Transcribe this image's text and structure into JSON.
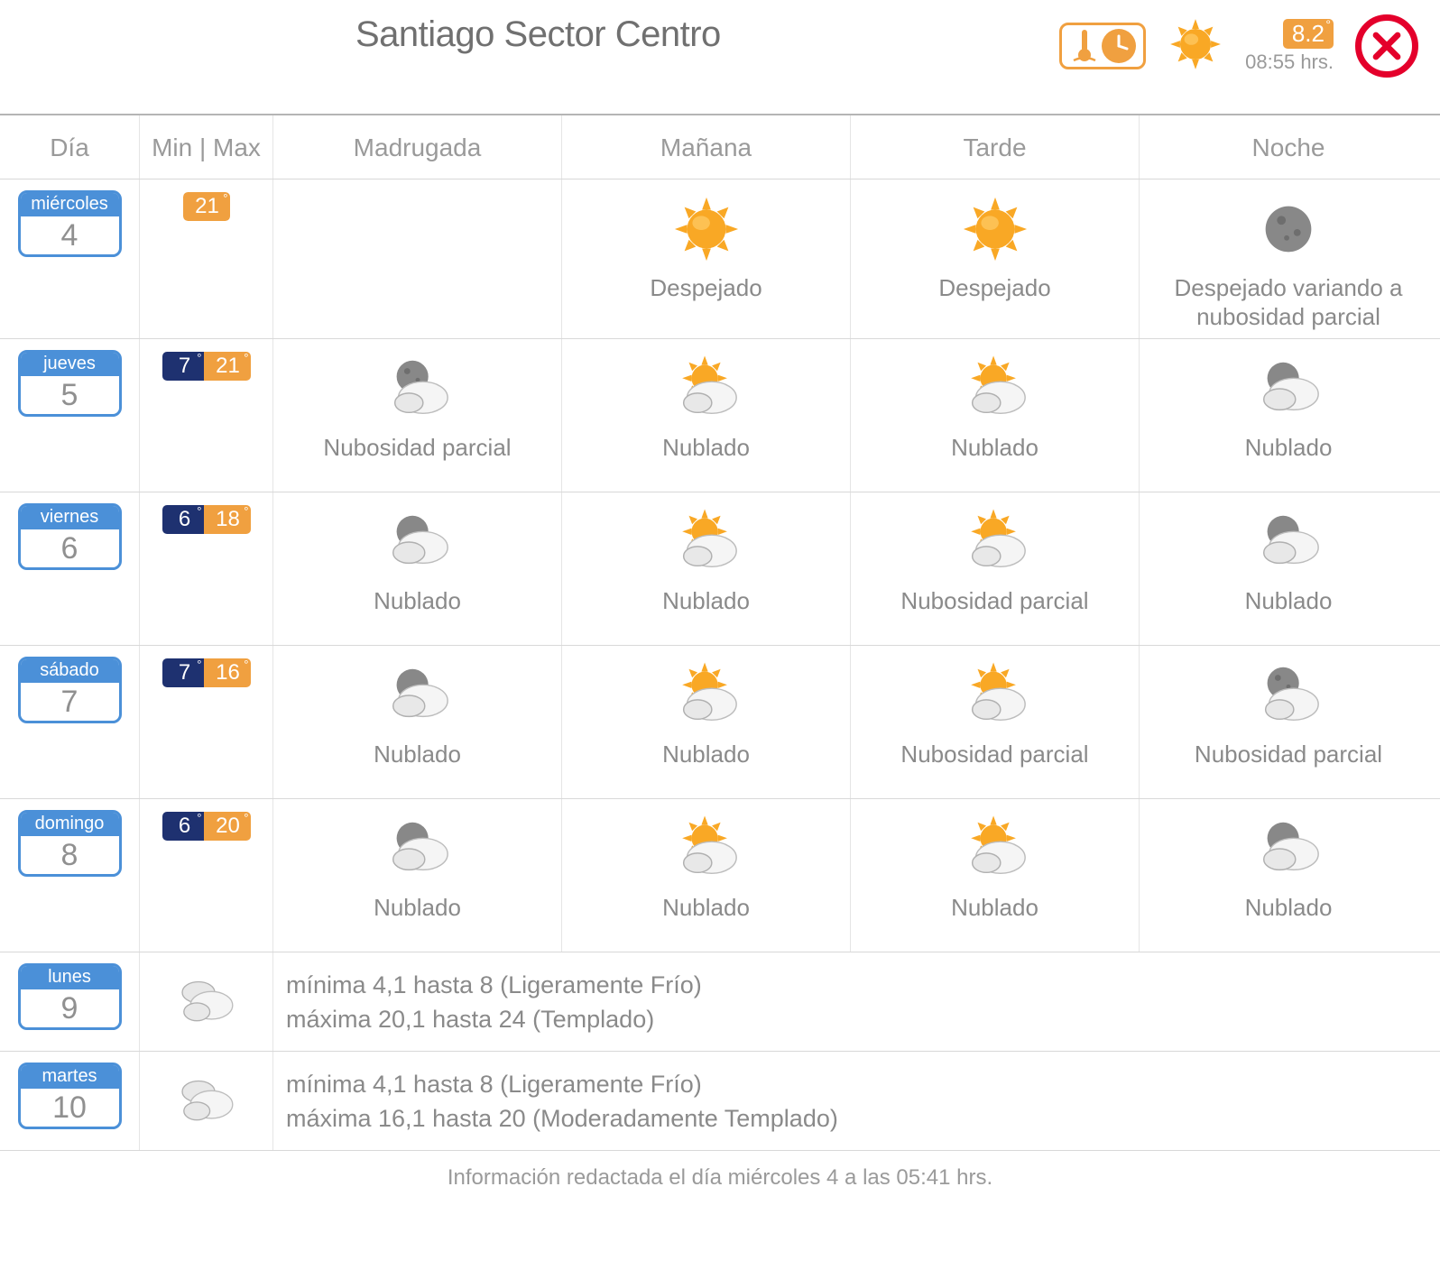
{
  "colors": {
    "accent_orange": "#f0a040",
    "accent_blue": "#4b90d8",
    "min_bg": "#1e3170",
    "close_red": "#e4002b",
    "text_muted": "#8a8a8a",
    "border": "#d8d8d8"
  },
  "header": {
    "title": "Santiago Sector Centro",
    "current_temp": "8.2",
    "time_label": "08:55 hrs."
  },
  "columns": {
    "day": "Día",
    "minmax": "Min | Max",
    "p0": "Madrugada",
    "p1": "Mañana",
    "p2": "Tarde",
    "p3": "Noche"
  },
  "days": [
    {
      "weekday": "miércoles",
      "num": "4",
      "min": null,
      "max": "21",
      "periods": [
        null,
        {
          "label": "Despejado",
          "icon": "sun"
        },
        {
          "label": "Despejado",
          "icon": "sun"
        },
        {
          "label": "Despejado variando a nubosidad parcial",
          "icon": "moon"
        }
      ]
    },
    {
      "weekday": "jueves",
      "num": "5",
      "min": "7",
      "max": "21",
      "periods": [
        {
          "label": "Nubosidad parcial",
          "icon": "moon-cloud"
        },
        {
          "label": "Nublado",
          "icon": "sun-cloud"
        },
        {
          "label": "Nublado",
          "icon": "sun-cloud"
        },
        {
          "label": "Nublado",
          "icon": "cloud"
        }
      ]
    },
    {
      "weekday": "viernes",
      "num": "6",
      "min": "6",
      "max": "18",
      "periods": [
        {
          "label": "Nublado",
          "icon": "cloud"
        },
        {
          "label": "Nublado",
          "icon": "sun-cloud"
        },
        {
          "label": "Nubosidad parcial",
          "icon": "sun-cloud"
        },
        {
          "label": "Nublado",
          "icon": "cloud"
        }
      ]
    },
    {
      "weekday": "sábado",
      "num": "7",
      "min": "7",
      "max": "16",
      "periods": [
        {
          "label": "Nublado",
          "icon": "cloud"
        },
        {
          "label": "Nublado",
          "icon": "sun-cloud"
        },
        {
          "label": "Nubosidad parcial",
          "icon": "sun-cloud"
        },
        {
          "label": "Nubosidad parcial",
          "icon": "moon-cloud"
        }
      ]
    },
    {
      "weekday": "domingo",
      "num": "8",
      "min": "6",
      "max": "20",
      "periods": [
        {
          "label": "Nublado",
          "icon": "cloud"
        },
        {
          "label": "Nublado",
          "icon": "sun-cloud"
        },
        {
          "label": "Nublado",
          "icon": "sun-cloud"
        },
        {
          "label": "Nublado",
          "icon": "cloud"
        }
      ]
    }
  ],
  "extended": [
    {
      "weekday": "lunes",
      "num": "9",
      "icon": "clouds",
      "line1": "mínima 4,1 hasta 8 (Ligeramente Frío)",
      "line2": "máxima 20,1 hasta 24 (Templado)"
    },
    {
      "weekday": "martes",
      "num": "10",
      "icon": "clouds",
      "line1": "mínima 4,1 hasta 8 (Ligeramente Frío)",
      "line2": "máxima 16,1 hasta 20 (Moderadamente Templado)"
    }
  ],
  "footer": "Información redactada el día miércoles 4 a las 05:41 hrs."
}
